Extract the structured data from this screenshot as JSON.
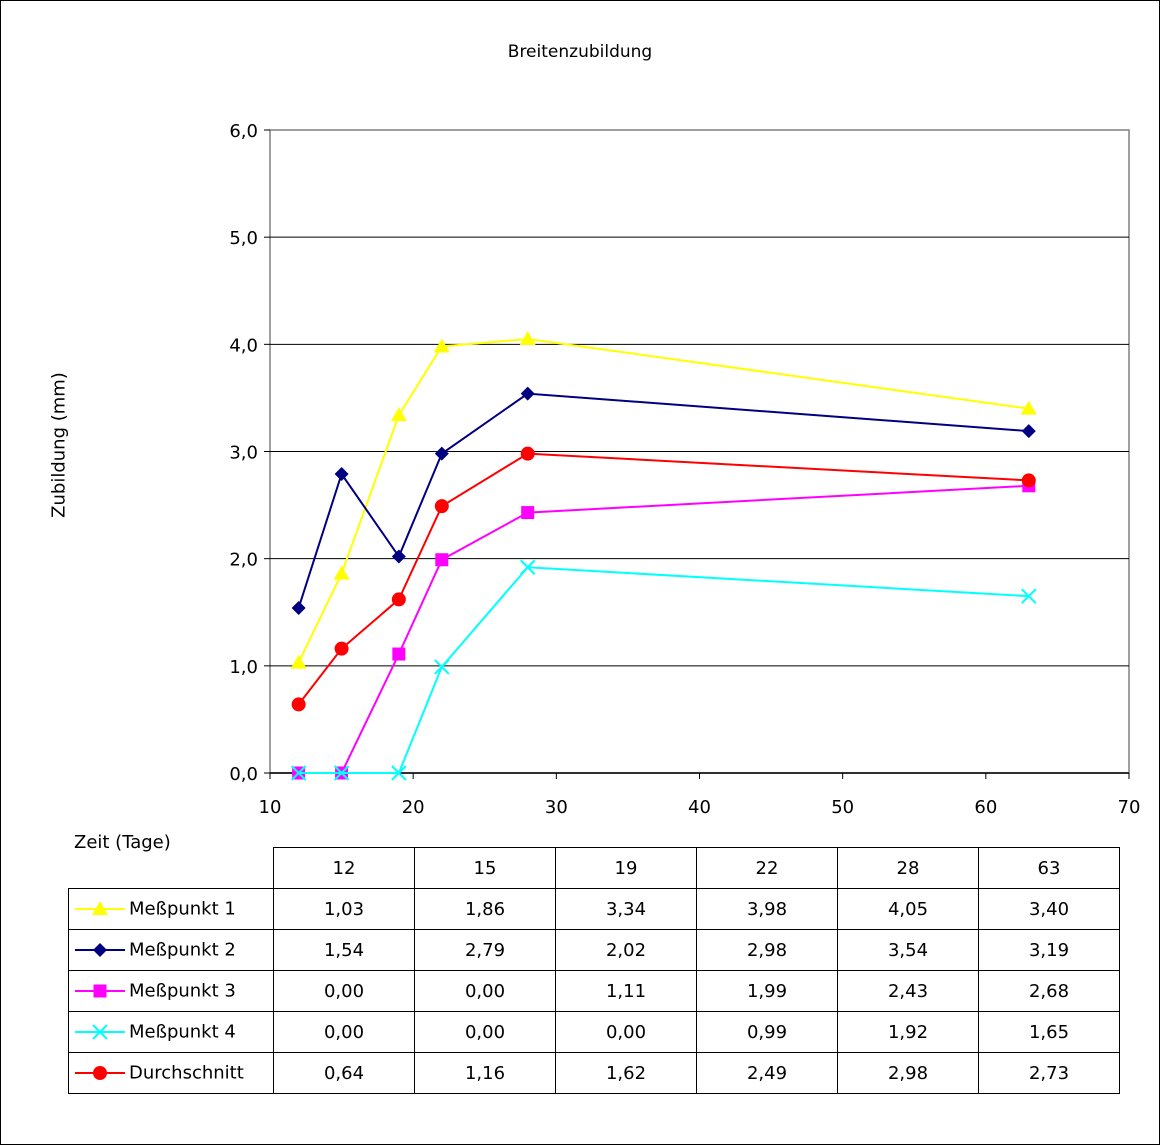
{
  "chart_data": {
    "type": "line",
    "title": "Breitenzubildung",
    "ylabel": "Zubildung (mm)",
    "xlabel": "Zeit (Tage)",
    "xlim": [
      10,
      70
    ],
    "ylim": [
      0,
      6
    ],
    "xticks": [
      "10",
      "20",
      "30",
      "40",
      "50",
      "60",
      "70"
    ],
    "yticks": [
      "0,0",
      "1,0",
      "2,0",
      "3,0",
      "4,0",
      "5,0",
      "6,0"
    ],
    "grid": "horizontal",
    "legend": "table-below",
    "x": [
      12,
      15,
      19,
      22,
      28,
      63
    ],
    "x_labels": [
      "12",
      "15",
      "19",
      "22",
      "28",
      "63"
    ],
    "series": [
      {
        "name": "Meßpunkt 1",
        "marker": "triangle",
        "color": "#FFFF00",
        "values": [
          1.03,
          1.86,
          3.34,
          3.98,
          4.05,
          3.4
        ],
        "labels": [
          "1,03",
          "1,86",
          "3,34",
          "3,98",
          "4,05",
          "3,40"
        ]
      },
      {
        "name": "Meßpunkt 2",
        "marker": "diamond",
        "color": "#000080",
        "values": [
          1.54,
          2.79,
          2.02,
          2.98,
          3.54,
          3.19
        ],
        "labels": [
          "1,54",
          "2,79",
          "2,02",
          "2,98",
          "3,54",
          "3,19"
        ]
      },
      {
        "name": "Meßpunkt 3",
        "marker": "square",
        "color": "#FF00FF",
        "values": [
          0.0,
          0.0,
          1.11,
          1.99,
          2.43,
          2.68
        ],
        "labels": [
          "0,00",
          "0,00",
          "1,11",
          "1,99",
          "2,43",
          "2,68"
        ]
      },
      {
        "name": "Meßpunkt 4",
        "marker": "x",
        "color": "#00FFFF",
        "values": [
          0.0,
          0.0,
          0.0,
          0.99,
          1.92,
          1.65
        ],
        "labels": [
          "0,00",
          "0,00",
          "0,00",
          "0,99",
          "1,92",
          "1,65"
        ]
      },
      {
        "name": "Durchschnitt",
        "marker": "circle",
        "color": "#FF0000",
        "values": [
          0.64,
          1.16,
          1.62,
          2.49,
          2.98,
          2.73
        ],
        "labels": [
          "0,64",
          "1,16",
          "1,62",
          "2,49",
          "2,98",
          "2,73"
        ]
      }
    ]
  }
}
